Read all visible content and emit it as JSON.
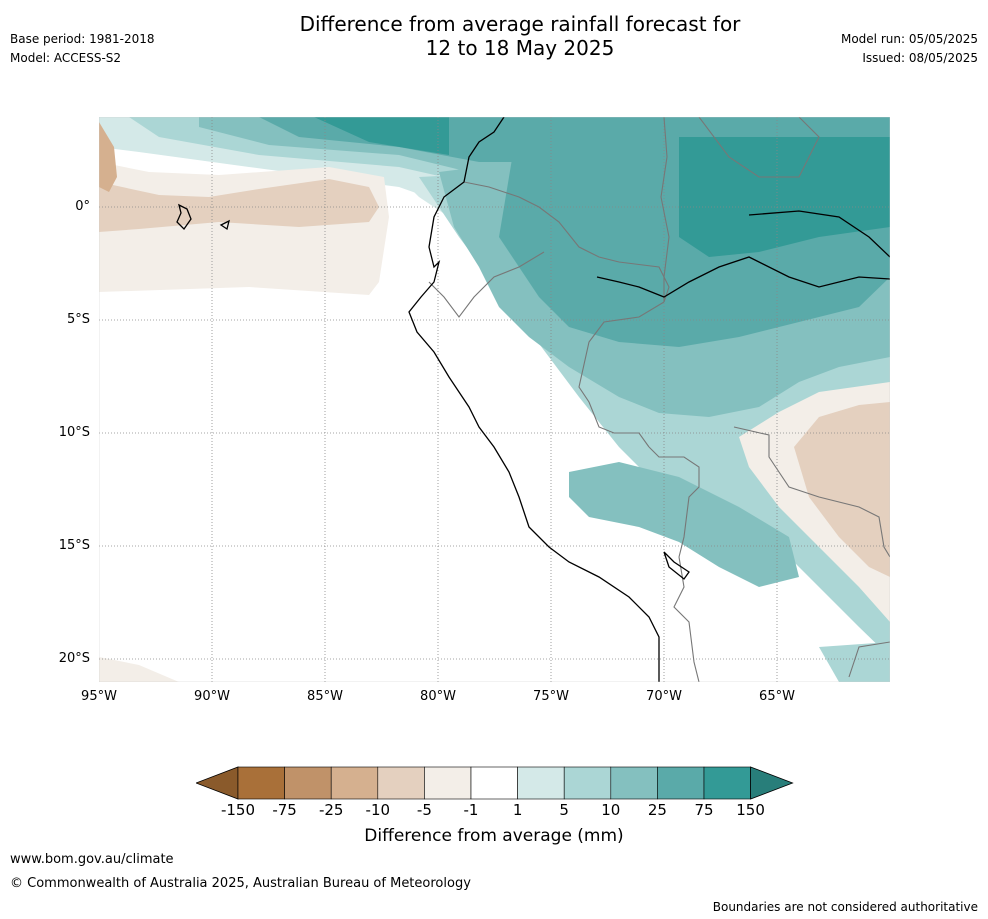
{
  "header": {
    "title_line1": "Difference from average rainfall forecast for",
    "title_line2": "12 to 18 May 2025",
    "base_period": "Base period: 1981-2018",
    "model": "Model: ACCESS-S2",
    "model_run": "Model run: 05/05/2025",
    "issued": "Issued: 08/05/2025"
  },
  "map": {
    "lat_labels": [
      "0°",
      "5°S",
      "10°S",
      "15°S",
      "20°S"
    ],
    "lon_labels": [
      "95°W",
      "90°W",
      "85°W",
      "80°W",
      "75°W",
      "70°W",
      "65°W"
    ],
    "lat_values": [
      0,
      -5,
      -10,
      -15,
      -20
    ],
    "lon_values": [
      -95,
      -90,
      -85,
      -80,
      -75,
      -70,
      -65
    ],
    "extent": {
      "lon_min": -95,
      "lon_max": -60,
      "lat_min": -21,
      "lat_max": 4
    }
  },
  "colorbar": {
    "title": "Difference from average (mm)",
    "ticks": [
      "-150",
      "-75",
      "-25",
      "-10",
      "-5",
      "-1",
      "1",
      "5",
      "10",
      "25",
      "75",
      "150"
    ],
    "colors": [
      "#8a5a2b",
      "#a97039",
      "#c09269",
      "#d5b08f",
      "#e4d0bf",
      "#f3eee8",
      "#ffffff",
      "#d4e9e8",
      "#abd6d5",
      "#84c0bf",
      "#5aaaa9",
      "#339a96",
      "#287e7a"
    ]
  },
  "footer": {
    "url": "www.bom.gov.au/climate",
    "copyright": "© Commonwealth of Australia 2025, Australian Bureau of Meteorology",
    "disclaimer": "Boundaries are not considered authoritative"
  }
}
